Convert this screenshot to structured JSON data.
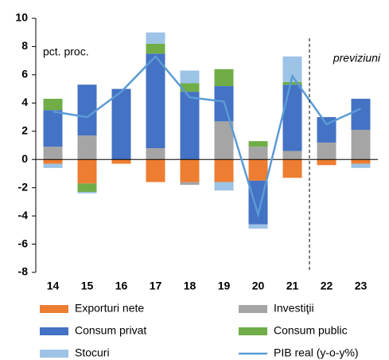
{
  "chart_data": {
    "type": "bar",
    "stacked": true,
    "annotations": [
      "pct. proc.",
      "previziuni"
    ],
    "categories": [
      "14",
      "15",
      "16",
      "17",
      "18",
      "19",
      "20",
      "21",
      "22",
      "23"
    ],
    "forecast_from": "22",
    "series": [
      {
        "name": "Exporturi nete",
        "color": "#ed7d31",
        "values": [
          -0.3,
          -1.7,
          -0.3,
          -1.6,
          -1.6,
          -1.6,
          -1.5,
          -1.3,
          -0.4,
          -0.3
        ]
      },
      {
        "name": "Investiţii",
        "color": "#a5a5a5",
        "values": [
          0.9,
          1.7,
          0,
          0.8,
          -0.2,
          2.7,
          0.9,
          0.6,
          1.2,
          2.1
        ]
      },
      {
        "name": "Consum privat",
        "color": "#4472c4",
        "values": [
          2.6,
          3.6,
          5.0,
          6.7,
          4.8,
          2.5,
          -3.1,
          4.7,
          1.8,
          2.2
        ]
      },
      {
        "name": "Consum public",
        "color": "#70ad47",
        "values": [
          0.8,
          -0.6,
          0,
          0.7,
          0.6,
          1.2,
          0.4,
          0.2,
          0,
          0
        ]
      },
      {
        "name": "Stocuri",
        "color": "#9dc3e6",
        "values": [
          -0.3,
          -0.1,
          0,
          0.8,
          0.9,
          -0.6,
          -0.3,
          1.8,
          0,
          -0.3
        ]
      },
      {
        "name": "PIB real (y-o-y%)",
        "color": "#5b9bd5",
        "type": "line",
        "values": [
          3.4,
          3.0,
          4.8,
          7.3,
          4.4,
          4.1,
          -3.9,
          5.9,
          2.5,
          3.6
        ]
      }
    ],
    "ylim": [
      -8,
      10
    ],
    "yticks": [
      -8,
      -6,
      -4,
      -2,
      0,
      2,
      4,
      6,
      8,
      10
    ],
    "grid": false
  }
}
